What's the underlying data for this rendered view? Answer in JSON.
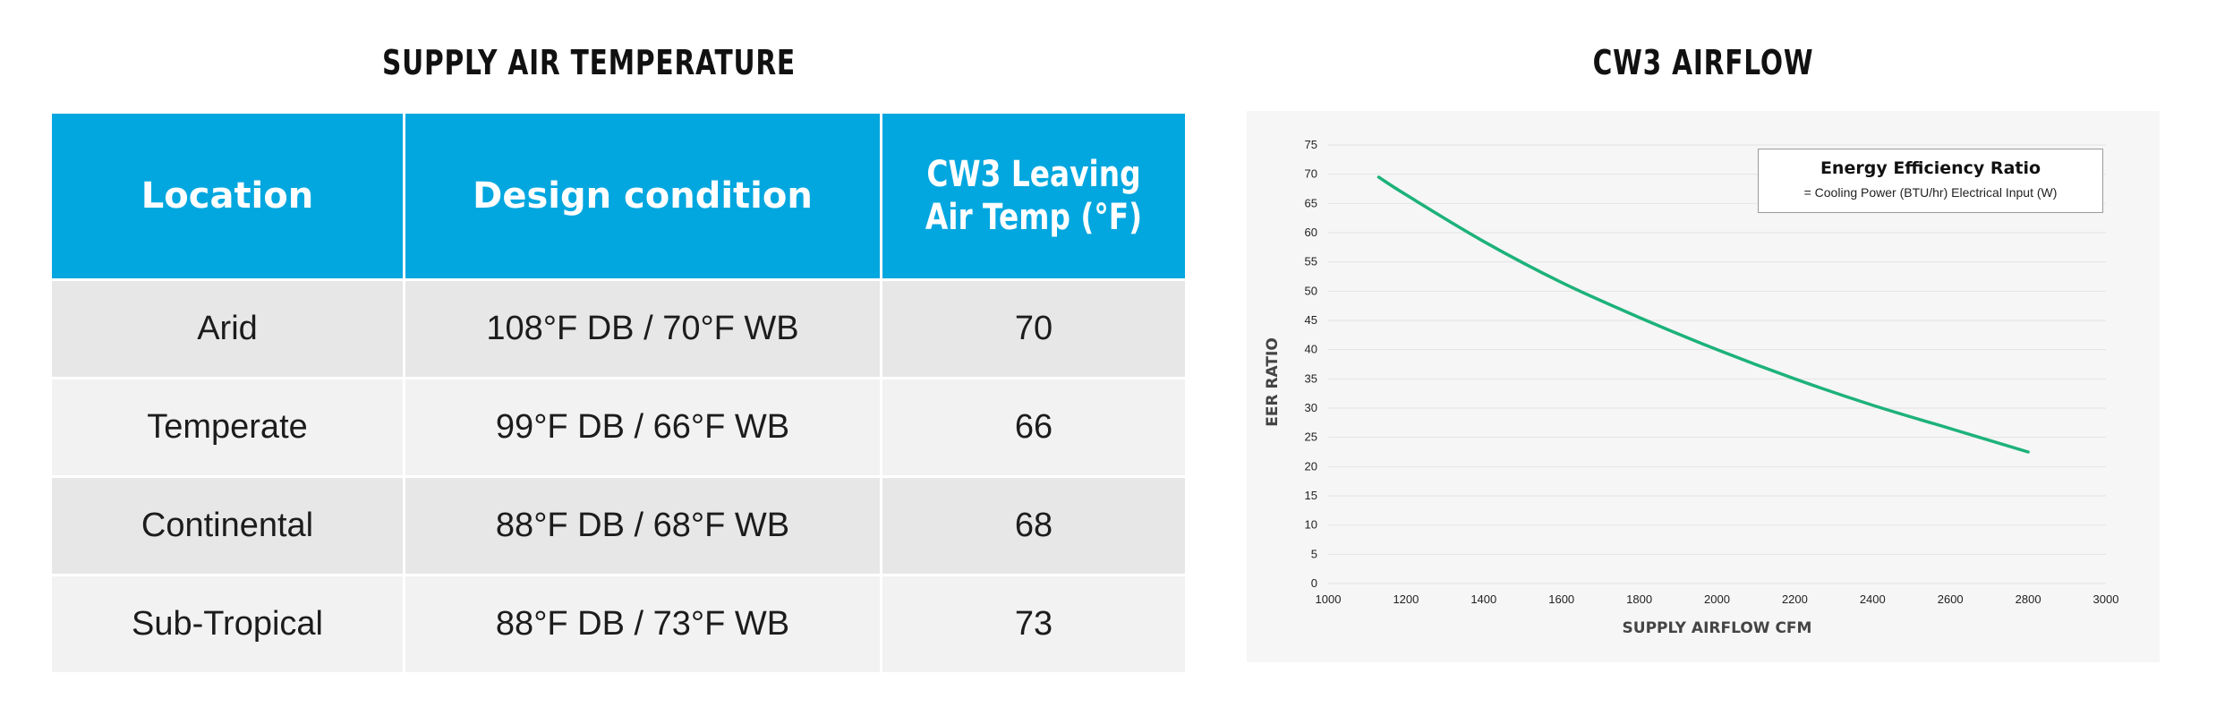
{
  "table_panel": {
    "title": "SUPPLY AIR TEMPERATURE",
    "headers": [
      "Location",
      "Design condition",
      "CW3 Leaving Air Temp (°F)"
    ],
    "rows": [
      {
        "location": "Arid",
        "condition": "108°F DB / 70°F WB",
        "temp": "70"
      },
      {
        "location": "Temperate",
        "condition": "99°F DB / 66°F WB",
        "temp": "66"
      },
      {
        "location": "Continental",
        "condition": "88°F DB / 68°F WB",
        "temp": "68"
      },
      {
        "location": "Sub-Tropical",
        "condition": "88°F DB / 73°F WB",
        "temp": "73"
      }
    ],
    "header_color": "#03a7df"
  },
  "chart_panel": {
    "title": "CW3 AIRFLOW",
    "legend": {
      "title": "Energy Efficiency Ratio",
      "subtitle": "= Cooling Power (BTU/hr) Electrical Input (W)"
    }
  },
  "chart_data": {
    "type": "line",
    "title": "CW3 AIRFLOW",
    "xlabel": "SUPPLY AIRFLOW CFM",
    "ylabel": "EER RATIO",
    "xlim": [
      1000,
      3000
    ],
    "ylim": [
      0,
      75
    ],
    "x_ticks": [
      1000,
      1200,
      1400,
      1600,
      1800,
      2000,
      2200,
      2400,
      2600,
      2800,
      3000
    ],
    "y_ticks": [
      0,
      5,
      10,
      15,
      20,
      25,
      30,
      35,
      40,
      45,
      50,
      55,
      60,
      65,
      70,
      75
    ],
    "grid": true,
    "legend_position": "top-right",
    "series": [
      {
        "color": "#1db27a",
        "x": [
          1130,
          1200,
          1400,
          1600,
          1800,
          2000,
          2200,
          2400,
          2600,
          2800
        ],
        "y": [
          69.5,
          66.5,
          58.5,
          51.5,
          45.5,
          40.0,
          35.0,
          30.5,
          26.5,
          22.5
        ]
      }
    ]
  }
}
